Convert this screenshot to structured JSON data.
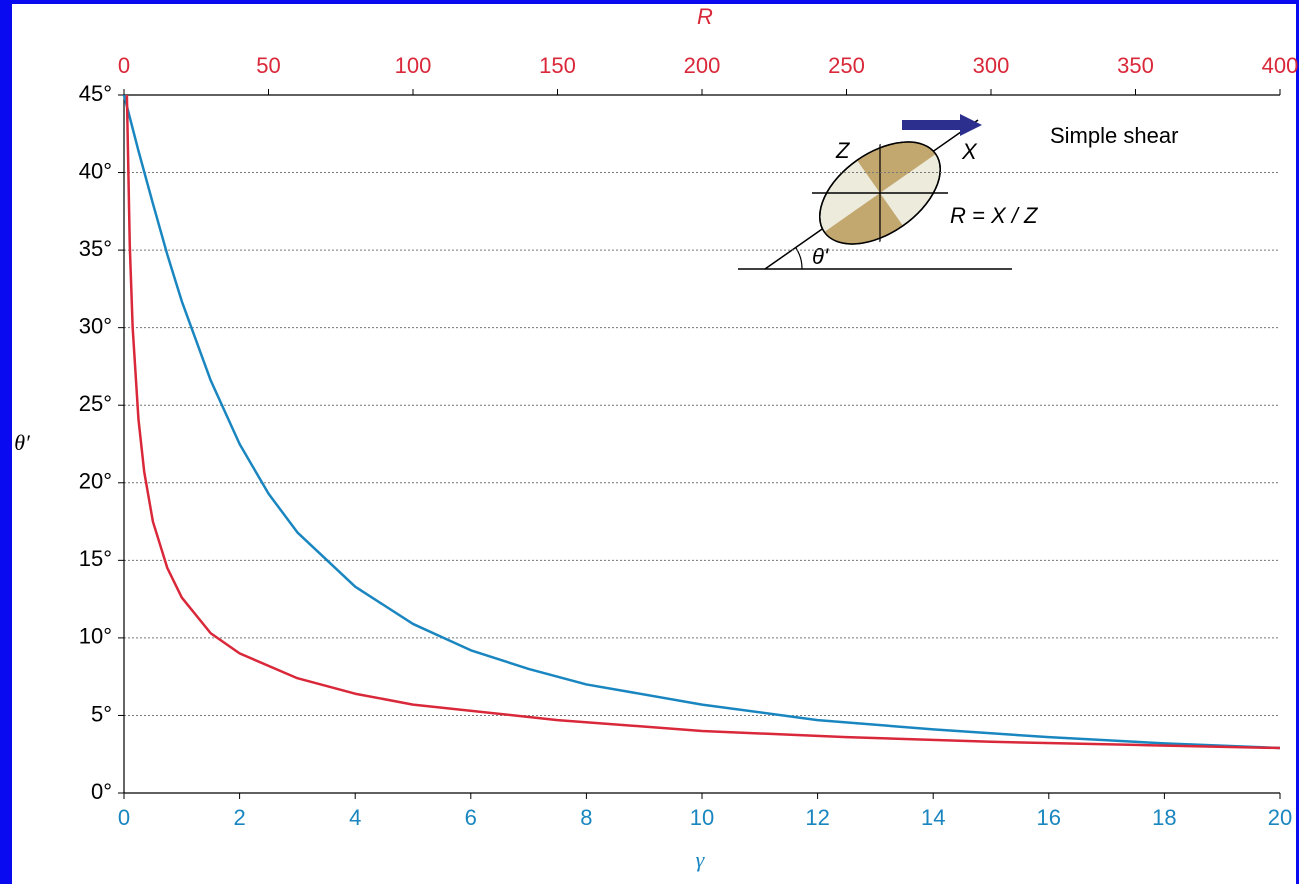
{
  "chart_data": {
    "type": "line",
    "xlabel": "γ",
    "x2label": "R",
    "ylabel": "θ′",
    "annotations": [
      "Simple shear",
      "Z",
      "X",
      "R = X / Z",
      "θ'"
    ],
    "xlim": [
      0,
      20
    ],
    "xticks": [
      0,
      2,
      4,
      6,
      8,
      10,
      12,
      14,
      16,
      18,
      20
    ],
    "x2lim": [
      0,
      400
    ],
    "x2ticks": [
      0,
      50,
      100,
      150,
      200,
      250,
      300,
      350,
      400
    ],
    "ylim": [
      0,
      45
    ],
    "yticks": [
      {
        "value": 0,
        "label": "0°"
      },
      {
        "value": 5,
        "label": "5°"
      },
      {
        "value": 10,
        "label": "10°"
      },
      {
        "value": 15,
        "label": "15°"
      },
      {
        "value": 20,
        "label": "20°"
      },
      {
        "value": 25,
        "label": "25°"
      },
      {
        "value": 30,
        "label": "30°"
      },
      {
        "value": 35,
        "label": "35°"
      },
      {
        "value": 40,
        "label": "40°"
      },
      {
        "value": 45,
        "label": "45°"
      }
    ],
    "grid": true,
    "series": [
      {
        "color": "#1a86c0",
        "axis": "x",
        "x": [
          0,
          0.25,
          0.5,
          0.75,
          1,
          1.5,
          2,
          2.5,
          3,
          4,
          5,
          6,
          7,
          8,
          10,
          12,
          14,
          16,
          18,
          20
        ],
        "values": [
          45,
          41.4,
          38.0,
          34.7,
          31.7,
          26.6,
          22.5,
          19.3,
          16.8,
          13.3,
          10.9,
          9.2,
          8.0,
          7.0,
          5.7,
          4.7,
          4.1,
          3.6,
          3.2,
          2.9
        ]
      },
      {
        "color": "#d9283a",
        "axis": "x2",
        "x": [
          1,
          2,
          3,
          5,
          7,
          10,
          15,
          20,
          30,
          40,
          60,
          80,
          100,
          150,
          200,
          250,
          300,
          350,
          400
        ],
        "values": [
          45,
          35.3,
          30,
          24.1,
          20.7,
          17.5,
          14.5,
          12.6,
          10.3,
          9.0,
          7.4,
          6.4,
          5.7,
          4.7,
          4.0,
          3.6,
          3.3,
          3.1,
          2.9
        ]
      }
    ]
  }
}
